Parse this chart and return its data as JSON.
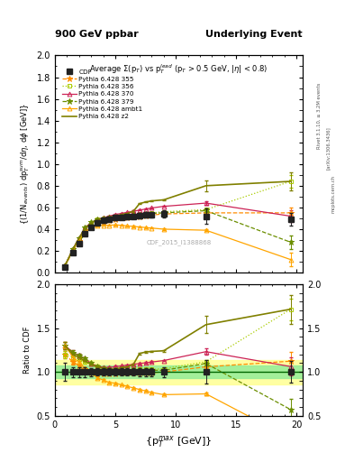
{
  "title_left": "900 GeV ppbar",
  "title_right": "Underlying Event",
  "panel_title": "Average $\\Sigma$(p$_T$) vs p$_T^{lead}$ (p$_T$ > 0.5 GeV, |$\\eta$| < 0.8)",
  "ylabel_main": "{(1/N$_{events}$) dp$_T^{sum}$/d$\\eta$, d$\\phi$ [GeV]}",
  "ylabel_ratio": "Ratio to CDF",
  "xlabel": "{p$_T^{max}$ [GeV]}",
  "watermark": "CDF_2015_I1388868",
  "rivet_label": "Rivet 3.1.10, ≥ 3.2M events",
  "arxiv_label": "[arXiv:1306.3436]",
  "mcplots_label": "mcplots.cern.ch",
  "cdf_x": [
    0.84,
    1.5,
    2.0,
    2.5,
    3.0,
    3.5,
    4.0,
    4.5,
    5.0,
    5.5,
    6.0,
    6.5,
    7.0,
    7.5,
    8.0,
    9.0,
    12.5,
    19.5
  ],
  "cdf_y": [
    0.05,
    0.18,
    0.27,
    0.36,
    0.42,
    0.46,
    0.48,
    0.495,
    0.505,
    0.51,
    0.515,
    0.52,
    0.525,
    0.53,
    0.535,
    0.54,
    0.52,
    0.49
  ],
  "cdf_yerr": [
    0.005,
    0.01,
    0.015,
    0.02,
    0.02,
    0.02,
    0.02,
    0.02,
    0.02,
    0.02,
    0.02,
    0.02,
    0.025,
    0.025,
    0.025,
    0.03,
    0.07,
    0.06
  ],
  "p355_x": [
    0.84,
    1.5,
    2.0,
    2.5,
    3.0,
    3.5,
    4.0,
    4.5,
    5.0,
    5.5,
    6.0,
    6.5,
    7.0,
    7.5,
    8.0,
    9.0,
    12.5,
    19.5
  ],
  "p355_y": [
    0.06,
    0.2,
    0.29,
    0.37,
    0.42,
    0.45,
    0.47,
    0.485,
    0.495,
    0.505,
    0.51,
    0.515,
    0.52,
    0.525,
    0.53,
    0.54,
    0.55,
    0.55
  ],
  "p355_yerr": [
    0.002,
    0.005,
    0.005,
    0.005,
    0.005,
    0.005,
    0.005,
    0.005,
    0.005,
    0.005,
    0.005,
    0.005,
    0.005,
    0.005,
    0.005,
    0.005,
    0.01,
    0.05
  ],
  "p356_x": [
    0.84,
    1.5,
    2.0,
    2.5,
    3.0,
    3.5,
    4.0,
    4.5,
    5.0,
    5.5,
    6.0,
    6.5,
    7.0,
    7.5,
    8.0,
    9.0,
    12.5,
    19.5
  ],
  "p356_y": [
    0.06,
    0.21,
    0.31,
    0.4,
    0.46,
    0.49,
    0.5,
    0.51,
    0.52,
    0.525,
    0.53,
    0.535,
    0.54,
    0.545,
    0.55,
    0.56,
    0.58,
    0.84
  ],
  "p356_yerr": [
    0.002,
    0.005,
    0.005,
    0.005,
    0.005,
    0.005,
    0.005,
    0.005,
    0.005,
    0.005,
    0.005,
    0.005,
    0.005,
    0.005,
    0.005,
    0.005,
    0.01,
    0.06
  ],
  "p370_x": [
    0.84,
    1.5,
    2.0,
    2.5,
    3.0,
    3.5,
    4.0,
    4.5,
    5.0,
    5.5,
    6.0,
    6.5,
    7.0,
    7.5,
    8.0,
    9.0,
    12.5,
    19.5
  ],
  "p370_y": [
    0.065,
    0.22,
    0.32,
    0.415,
    0.46,
    0.49,
    0.505,
    0.52,
    0.535,
    0.545,
    0.555,
    0.565,
    0.575,
    0.585,
    0.595,
    0.61,
    0.64,
    0.52
  ],
  "p370_yerr": [
    0.002,
    0.005,
    0.005,
    0.005,
    0.005,
    0.005,
    0.005,
    0.005,
    0.005,
    0.005,
    0.005,
    0.005,
    0.005,
    0.005,
    0.005,
    0.005,
    0.02,
    0.05
  ],
  "p379_x": [
    0.84,
    1.5,
    2.0,
    2.5,
    3.0,
    3.5,
    4.0,
    4.5,
    5.0,
    5.5,
    6.0,
    6.5,
    7.0,
    7.5,
    8.0,
    9.0,
    12.5,
    19.5
  ],
  "p379_y": [
    0.065,
    0.22,
    0.32,
    0.415,
    0.465,
    0.49,
    0.5,
    0.51,
    0.515,
    0.52,
    0.525,
    0.53,
    0.535,
    0.54,
    0.545,
    0.55,
    0.57,
    0.28
  ],
  "p379_yerr": [
    0.002,
    0.005,
    0.005,
    0.005,
    0.005,
    0.005,
    0.005,
    0.005,
    0.005,
    0.005,
    0.005,
    0.005,
    0.005,
    0.005,
    0.005,
    0.005,
    0.01,
    0.06
  ],
  "pambt1_x": [
    0.84,
    1.5,
    2.0,
    2.5,
    3.0,
    3.5,
    4.0,
    4.5,
    5.0,
    5.5,
    6.0,
    6.5,
    7.0,
    7.5,
    8.0,
    9.0,
    12.5,
    19.5
  ],
  "pambt1_y": [
    0.065,
    0.21,
    0.3,
    0.375,
    0.415,
    0.43,
    0.435,
    0.435,
    0.44,
    0.435,
    0.43,
    0.425,
    0.42,
    0.415,
    0.41,
    0.4,
    0.39,
    0.12
  ],
  "pambt1_yerr": [
    0.002,
    0.005,
    0.005,
    0.005,
    0.005,
    0.005,
    0.005,
    0.005,
    0.005,
    0.005,
    0.005,
    0.005,
    0.005,
    0.005,
    0.005,
    0.005,
    0.01,
    0.06
  ],
  "pz2_x": [
    0.84,
    1.5,
    2.0,
    2.5,
    3.0,
    3.5,
    4.0,
    4.5,
    5.0,
    5.5,
    6.0,
    6.5,
    7.0,
    7.5,
    8.0,
    9.0,
    12.5,
    19.5
  ],
  "pz2_y": [
    0.065,
    0.215,
    0.315,
    0.405,
    0.455,
    0.485,
    0.5,
    0.51,
    0.52,
    0.535,
    0.545,
    0.565,
    0.635,
    0.65,
    0.66,
    0.67,
    0.8,
    0.84
  ],
  "pz2_yerr": [
    0.002,
    0.005,
    0.005,
    0.005,
    0.005,
    0.005,
    0.005,
    0.005,
    0.005,
    0.005,
    0.005,
    0.005,
    0.005,
    0.005,
    0.005,
    0.005,
    0.05,
    0.08
  ],
  "cdf_color": "#222222",
  "p355_color": "#ff8c00",
  "p356_color": "#aacc00",
  "p370_color": "#cc2255",
  "p379_color": "#6b8e00",
  "pambt1_color": "#ffa500",
  "pz2_color": "#808000",
  "ratio_band_green": [
    0.93,
    1.07
  ],
  "ratio_band_yellow": [
    0.86,
    1.14
  ],
  "ylim_main": [
    0.0,
    2.0
  ],
  "ylim_ratio": [
    0.5,
    2.0
  ],
  "xlim": [
    0.0,
    20.5
  ],
  "yticks_main": [
    0.0,
    0.2,
    0.4,
    0.6,
    0.8,
    1.0,
    1.2,
    1.4,
    1.6,
    1.8,
    2.0
  ],
  "yticks_ratio": [
    0.5,
    1.0,
    1.5,
    2.0
  ],
  "xticks": [
    0,
    5,
    10,
    15,
    20
  ]
}
